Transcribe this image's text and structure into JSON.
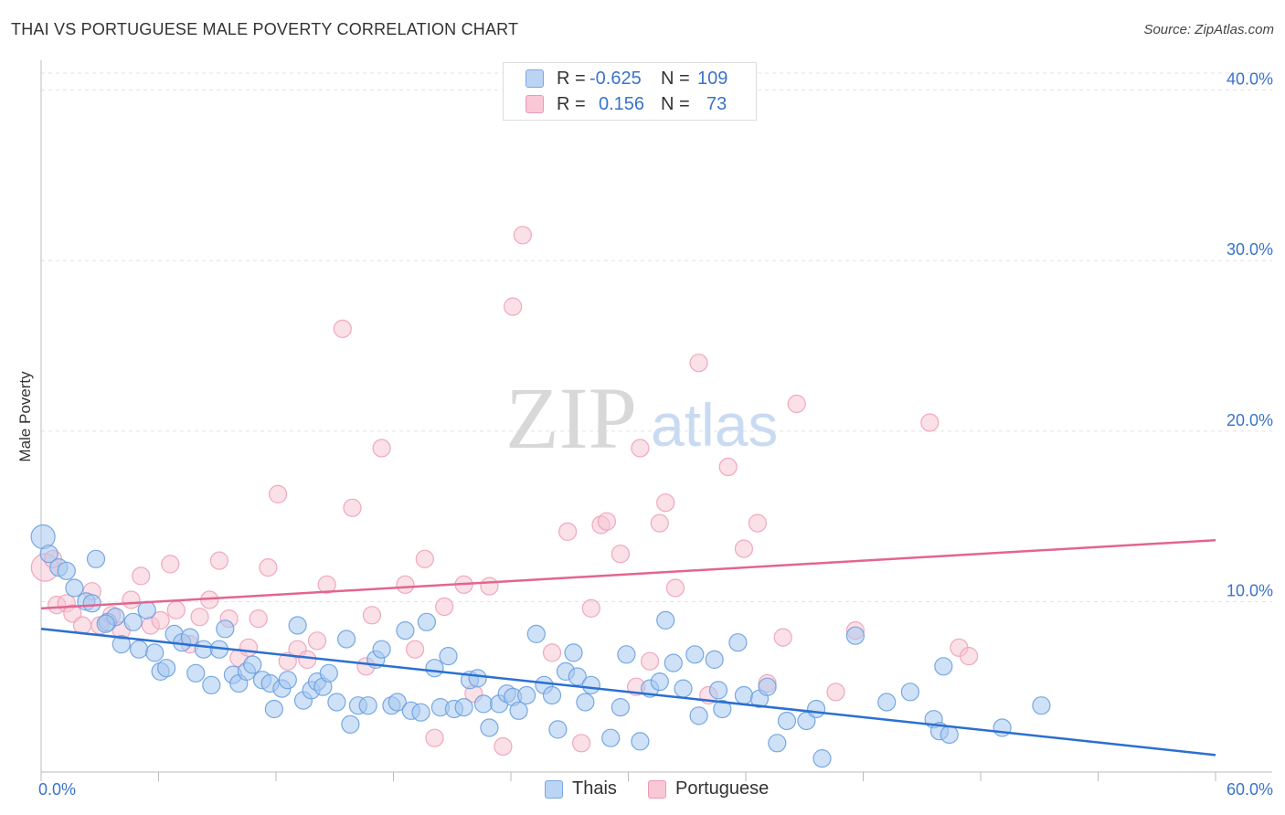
{
  "header": {
    "title": "THAI VS PORTUGUESE MALE POVERTY CORRELATION CHART",
    "source": "Source: ZipAtlas.com"
  },
  "watermark": {
    "zip": "ZIP",
    "atlas": "atlas"
  },
  "legend": {
    "rows": [
      {
        "r_label": "R =",
        "r_value": "-0.625",
        "n_label": "N =",
        "n_value": "109",
        "color": "#a8c8f0"
      },
      {
        "r_label": "R =",
        "r_value": "0.156",
        "n_label": "N =",
        "n_value": "73",
        "color": "#f6b8cb"
      }
    ]
  },
  "bottom_legend": {
    "thais": "Thais",
    "portuguese": "Portuguese"
  },
  "chart_data": {
    "type": "scatter",
    "title": "THAI VS PORTUGUESE MALE POVERTY CORRELATION CHART",
    "xlabel": "",
    "ylabel": "Male Poverty",
    "xlim": [
      0,
      60
    ],
    "ylim": [
      0,
      41
    ],
    "x_tick_labels": [
      "0.0%",
      "60.0%"
    ],
    "y_ticks": [
      10,
      20,
      30,
      40
    ],
    "y_tick_labels": [
      "10.0%",
      "20.0%",
      "30.0%",
      "40.0%"
    ],
    "grid": true,
    "legend_position": "top-center",
    "series": [
      {
        "name": "Thais",
        "color": "#6aa0e0",
        "fill": "#a8c8f0",
        "trend_color": "#2b6fd1",
        "r": -0.625,
        "n": 109,
        "trend": {
          "x": [
            0,
            60
          ],
          "y": [
            8.4,
            1.0
          ]
        },
        "points": [
          [
            0.1,
            13.8
          ],
          [
            0.4,
            12.8
          ],
          [
            0.9,
            12.0
          ],
          [
            1.3,
            11.8
          ],
          [
            1.7,
            10.8
          ],
          [
            2.3,
            10.0
          ],
          [
            2.8,
            12.5
          ],
          [
            3.4,
            8.8
          ],
          [
            2.6,
            9.9
          ],
          [
            3.8,
            9.1
          ],
          [
            3.3,
            8.7
          ],
          [
            4.1,
            7.5
          ],
          [
            4.7,
            8.8
          ],
          [
            5.0,
            7.2
          ],
          [
            5.4,
            9.5
          ],
          [
            5.8,
            7.0
          ],
          [
            6.1,
            5.9
          ],
          [
            6.4,
            6.1
          ],
          [
            6.8,
            8.1
          ],
          [
            7.2,
            7.6
          ],
          [
            7.6,
            7.9
          ],
          [
            7.9,
            5.8
          ],
          [
            8.3,
            7.2
          ],
          [
            8.7,
            5.1
          ],
          [
            9.1,
            7.2
          ],
          [
            9.4,
            8.4
          ],
          [
            9.8,
            5.7
          ],
          [
            10.1,
            5.2
          ],
          [
            10.5,
            5.9
          ],
          [
            10.8,
            6.3
          ],
          [
            11.3,
            5.4
          ],
          [
            11.7,
            5.2
          ],
          [
            11.9,
            3.7
          ],
          [
            12.3,
            4.9
          ],
          [
            12.6,
            5.4
          ],
          [
            13.1,
            8.6
          ],
          [
            13.4,
            4.2
          ],
          [
            13.8,
            4.8
          ],
          [
            14.1,
            5.3
          ],
          [
            14.4,
            5.0
          ],
          [
            14.7,
            5.8
          ],
          [
            15.1,
            4.1
          ],
          [
            15.6,
            7.8
          ],
          [
            15.8,
            2.8
          ],
          [
            16.2,
            3.9
          ],
          [
            16.7,
            3.9
          ],
          [
            17.1,
            6.6
          ],
          [
            17.4,
            7.2
          ],
          [
            17.9,
            3.9
          ],
          [
            18.2,
            4.1
          ],
          [
            18.6,
            8.3
          ],
          [
            18.9,
            3.6
          ],
          [
            19.4,
            3.5
          ],
          [
            19.7,
            8.8
          ],
          [
            20.1,
            6.1
          ],
          [
            20.4,
            3.8
          ],
          [
            20.8,
            6.8
          ],
          [
            21.1,
            3.7
          ],
          [
            21.6,
            3.8
          ],
          [
            21.9,
            5.4
          ],
          [
            22.3,
            5.5
          ],
          [
            22.6,
            4.0
          ],
          [
            22.9,
            2.6
          ],
          [
            23.4,
            4.0
          ],
          [
            23.8,
            4.6
          ],
          [
            24.1,
            4.4
          ],
          [
            24.4,
            3.6
          ],
          [
            24.8,
            4.5
          ],
          [
            25.3,
            8.1
          ],
          [
            25.7,
            5.1
          ],
          [
            26.1,
            4.5
          ],
          [
            26.4,
            2.5
          ],
          [
            26.8,
            5.9
          ],
          [
            27.2,
            7.0
          ],
          [
            27.4,
            5.6
          ],
          [
            27.8,
            4.1
          ],
          [
            28.1,
            5.1
          ],
          [
            29.1,
            2.0
          ],
          [
            29.6,
            3.8
          ],
          [
            29.9,
            6.9
          ],
          [
            30.6,
            1.8
          ],
          [
            31.1,
            4.9
          ],
          [
            31.6,
            5.3
          ],
          [
            31.9,
            8.9
          ],
          [
            32.3,
            6.4
          ],
          [
            32.8,
            4.9
          ],
          [
            33.4,
            6.9
          ],
          [
            33.6,
            3.3
          ],
          [
            34.4,
            6.6
          ],
          [
            34.6,
            4.8
          ],
          [
            34.8,
            3.7
          ],
          [
            35.6,
            7.6
          ],
          [
            35.9,
            4.5
          ],
          [
            36.7,
            4.3
          ],
          [
            37.1,
            5.0
          ],
          [
            37.6,
            1.7
          ],
          [
            38.1,
            3.0
          ],
          [
            39.1,
            3.0
          ],
          [
            39.6,
            3.7
          ],
          [
            39.9,
            0.8
          ],
          [
            41.6,
            8.0
          ],
          [
            43.2,
            4.1
          ],
          [
            44.4,
            4.7
          ],
          [
            45.6,
            3.1
          ],
          [
            45.9,
            2.4
          ],
          [
            46.1,
            6.2
          ],
          [
            46.4,
            2.2
          ],
          [
            49.1,
            2.6
          ],
          [
            51.1,
            3.9
          ]
        ]
      },
      {
        "name": "Portuguese",
        "color": "#f0a0b8",
        "fill": "#f6c6d4",
        "trend_color": "#e36590",
        "r": 0.156,
        "n": 73,
        "trend": {
          "x": [
            0,
            60
          ],
          "y": [
            9.6,
            13.6
          ]
        },
        "points": [
          [
            0.2,
            12.0
          ],
          [
            0.6,
            12.5
          ],
          [
            0.8,
            9.8
          ],
          [
            1.3,
            9.9
          ],
          [
            1.6,
            9.3
          ],
          [
            2.1,
            8.6
          ],
          [
            2.6,
            10.6
          ],
          [
            3.0,
            8.6
          ],
          [
            3.6,
            9.2
          ],
          [
            4.1,
            8.3
          ],
          [
            4.6,
            10.1
          ],
          [
            5.1,
            11.5
          ],
          [
            5.6,
            8.6
          ],
          [
            6.1,
            8.9
          ],
          [
            6.6,
            12.2
          ],
          [
            6.9,
            9.5
          ],
          [
            7.6,
            7.5
          ],
          [
            8.1,
            9.1
          ],
          [
            8.6,
            10.1
          ],
          [
            9.1,
            12.4
          ],
          [
            9.6,
            9.0
          ],
          [
            10.1,
            6.7
          ],
          [
            10.6,
            7.3
          ],
          [
            11.1,
            9.0
          ],
          [
            11.6,
            12.0
          ],
          [
            12.1,
            16.3
          ],
          [
            12.6,
            6.5
          ],
          [
            13.1,
            7.2
          ],
          [
            13.6,
            6.6
          ],
          [
            14.1,
            7.7
          ],
          [
            14.6,
            11.0
          ],
          [
            15.4,
            26.0
          ],
          [
            15.9,
            15.5
          ],
          [
            16.6,
            6.2
          ],
          [
            16.9,
            9.2
          ],
          [
            17.4,
            19.0
          ],
          [
            18.6,
            11.0
          ],
          [
            19.1,
            7.2
          ],
          [
            19.6,
            12.5
          ],
          [
            20.1,
            2.0
          ],
          [
            20.6,
            9.7
          ],
          [
            21.6,
            11.0
          ],
          [
            22.1,
            4.6
          ],
          [
            22.9,
            10.9
          ],
          [
            23.6,
            1.5
          ],
          [
            24.1,
            27.3
          ],
          [
            24.6,
            31.5
          ],
          [
            26.1,
            7.0
          ],
          [
            26.9,
            14.1
          ],
          [
            27.6,
            1.7
          ],
          [
            28.1,
            9.6
          ],
          [
            28.6,
            14.5
          ],
          [
            28.9,
            14.7
          ],
          [
            29.6,
            12.8
          ],
          [
            30.4,
            5.0
          ],
          [
            30.6,
            19.0
          ],
          [
            31.1,
            6.5
          ],
          [
            31.6,
            14.6
          ],
          [
            31.9,
            15.8
          ],
          [
            32.4,
            10.8
          ],
          [
            33.6,
            24.0
          ],
          [
            34.1,
            4.5
          ],
          [
            35.1,
            17.9
          ],
          [
            35.9,
            13.1
          ],
          [
            36.6,
            14.6
          ],
          [
            37.1,
            5.2
          ],
          [
            37.9,
            7.9
          ],
          [
            38.6,
            21.6
          ],
          [
            40.6,
            4.7
          ],
          [
            41.6,
            8.3
          ],
          [
            45.4,
            20.5
          ],
          [
            46.9,
            7.3
          ],
          [
            47.4,
            6.8
          ]
        ]
      }
    ]
  }
}
